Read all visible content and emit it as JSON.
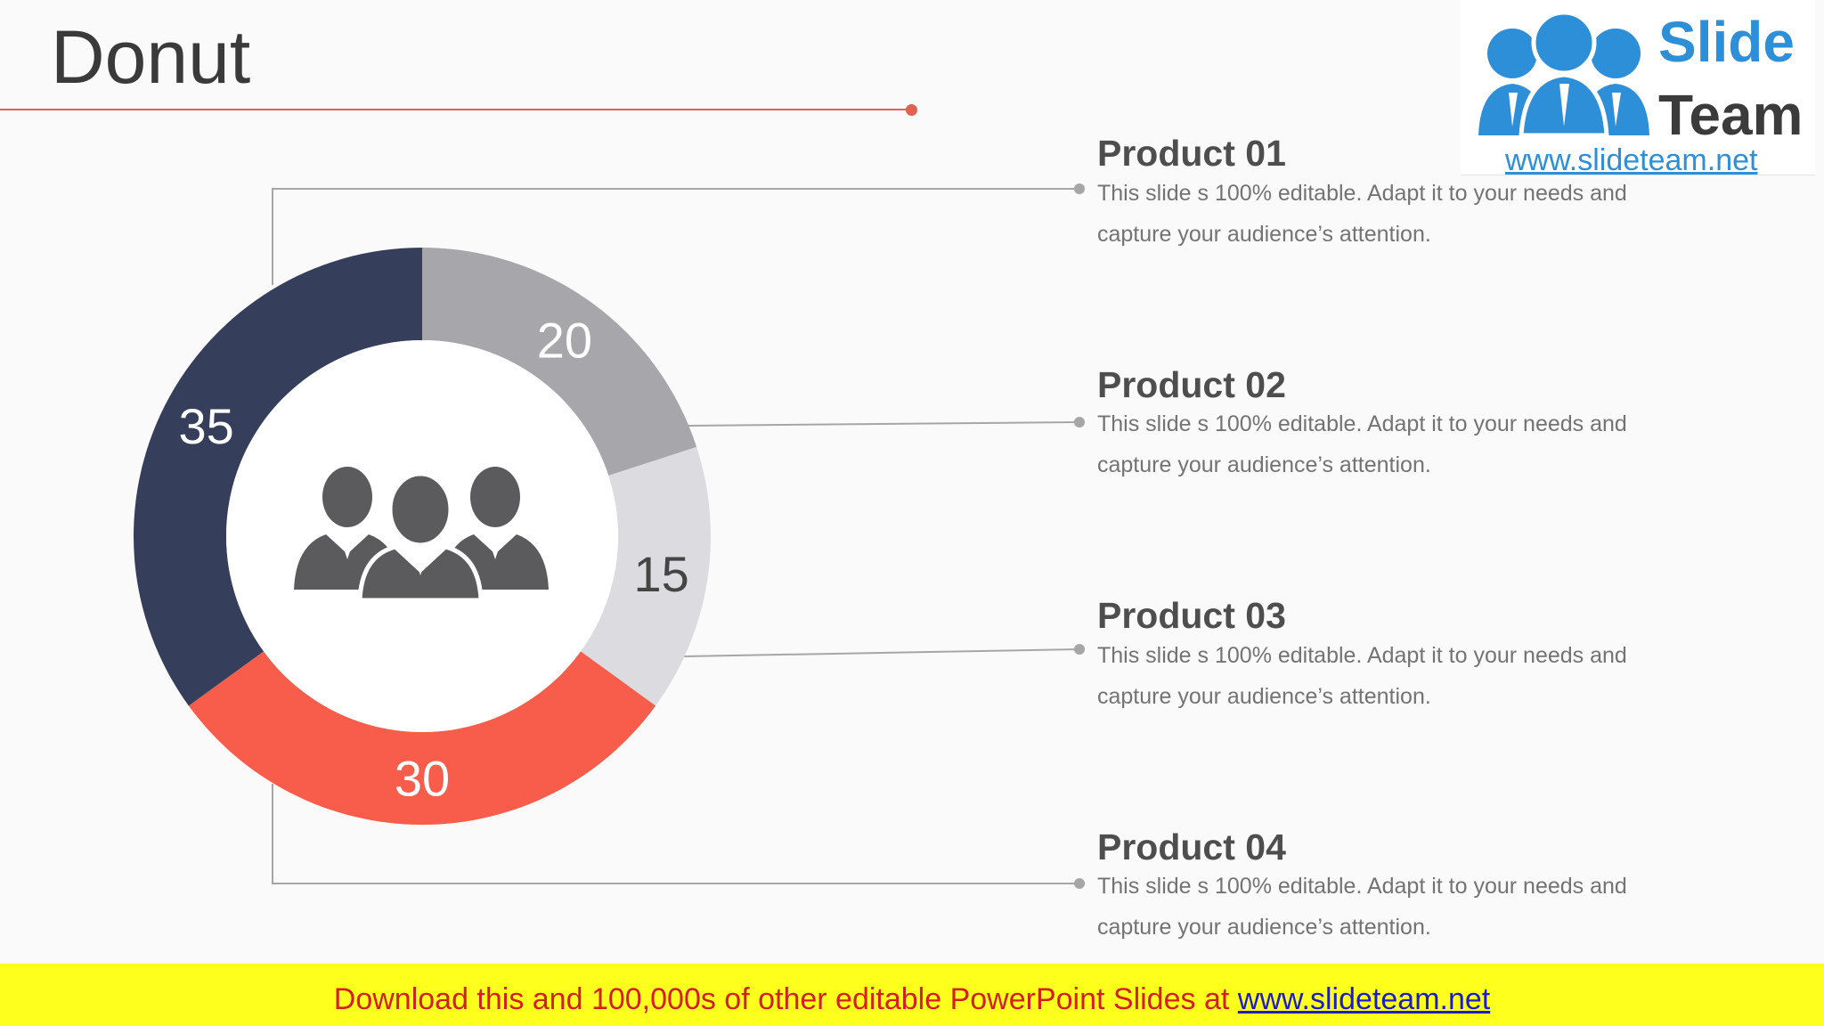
{
  "slide": {
    "title": "Donut"
  },
  "chart_data": {
    "type": "pie",
    "variant": "donut",
    "categories": [
      "Product 01",
      "Product 02",
      "Product 03",
      "Product 04"
    ],
    "values": [
      20,
      15,
      30,
      35
    ],
    "slice_labels": [
      "20",
      "15",
      "30",
      "35"
    ],
    "colors": [
      "#a7a6aa",
      "#dcdbdf",
      "#f75d4a",
      "#353f5b"
    ],
    "center_icon": "people-group-icon"
  },
  "products": [
    {
      "title": "Product 01",
      "desc": "This slide s 100% editable. Adapt it to your needs and capture your audience’s attention."
    },
    {
      "title": "Product 02",
      "desc": "This slide s 100% editable. Adapt it to your needs and capture your audience’s attention."
    },
    {
      "title": "Product 03",
      "desc": "This slide s 100% editable. Adapt it to your needs and capture your audience’s attention."
    },
    {
      "title": "Product 04",
      "desc": "This slide s 100% editable. Adapt it to your needs and capture your audience’s attention."
    }
  ],
  "logo": {
    "word1": "Slide",
    "word2": "Team",
    "url": "www.slideteam.net",
    "icon": "slideteam-people-icon",
    "blue": "#2e8fd9",
    "dark": "#3b3b3b"
  },
  "banner": {
    "text": "Download this and 100,000s of other editable PowerPoint Slides at ",
    "link": "www.slideteam.net"
  },
  "colors": {
    "accent": "#e0614e",
    "banner_bg": "#ffff1e",
    "banner_text": "#d51e1e",
    "link": "#1c1cc8",
    "connector": "#a6a6a6",
    "icon": "#5b5b5e"
  }
}
